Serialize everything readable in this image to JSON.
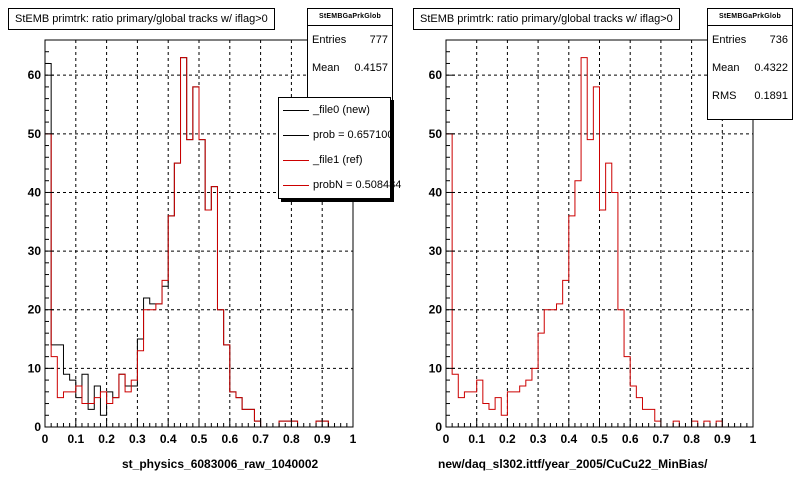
{
  "chart_data": [
    {
      "type": "histogram",
      "title": "StEMB primtrk: ratio primary/global tracks w/ iflag>0",
      "xlabel": "st_physics_6083006_raw_1040002",
      "xlim": [
        0,
        1
      ],
      "ylim": [
        0,
        66
      ],
      "xticks": [
        "0",
        "0.1",
        "0.2",
        "0.3",
        "0.4",
        "0.5",
        "0.6",
        "0.7",
        "0.8",
        "0.9",
        "1"
      ],
      "yticks": [
        "0",
        "10",
        "20",
        "30",
        "40",
        "50",
        "60"
      ],
      "grid": true,
      "bin_edges_start": 0,
      "bin_width": 0.02,
      "series": [
        {
          "name": "_file0 (new)",
          "color": "#000000",
          "values": [
            62,
            14,
            14,
            9,
            8,
            5,
            9,
            3,
            7,
            2,
            6,
            5,
            9,
            7,
            7,
            15,
            22,
            21,
            21,
            24,
            36,
            45,
            63,
            49,
            58,
            49,
            37,
            41,
            20,
            14,
            6,
            5,
            3,
            3,
            1,
            0,
            0,
            0,
            1,
            1,
            1,
            0,
            0,
            0,
            1,
            1,
            0,
            0,
            0,
            0
          ]
        },
        {
          "name": "_file1 (ref)",
          "color": "#cc0000",
          "values": [
            50,
            12,
            5,
            6,
            6,
            7,
            4,
            4,
            5,
            6,
            4,
            5,
            9,
            6,
            8,
            13,
            20,
            20,
            21,
            25,
            36,
            45,
            63,
            49,
            58,
            49,
            37,
            41,
            20,
            14,
            6,
            5,
            3,
            3,
            1,
            0,
            0,
            0,
            1,
            1,
            1,
            0,
            0,
            0,
            1,
            1,
            0,
            0,
            0,
            0
          ]
        }
      ],
      "stats": {
        "name": "StEMBGaPrkGlob",
        "entries": "777",
        "mean": "0.4157"
      },
      "legend": [
        {
          "label": "_file0 (new)",
          "color": "#000000"
        },
        {
          "label": "prob = 0.657100",
          "color": "#000000"
        },
        {
          "label": "_file1 (ref)",
          "color": "#cc0000"
        },
        {
          "label": "probN = 0.508484",
          "color": "#cc0000"
        }
      ]
    },
    {
      "type": "histogram",
      "title": "StEMB primtrk: ratio primary/global tracks w/ iflag>0",
      "xlabel": "new/daq_sl302.ittf/year_2005/CuCu22_MinBias/",
      "xlim": [
        0,
        1
      ],
      "ylim": [
        0,
        66
      ],
      "xticks": [
        "0",
        "0.1",
        "0.2",
        "0.3",
        "0.4",
        "0.5",
        "0.6",
        "0.7",
        "0.8",
        "0.9",
        "1"
      ],
      "yticks": [
        "0",
        "10",
        "20",
        "30",
        "40",
        "50",
        "60"
      ],
      "grid": true,
      "bin_edges_start": 0,
      "bin_width": 0.02,
      "series": [
        {
          "name": "",
          "color": "#cc0000",
          "values": [
            50,
            9,
            5,
            6,
            6,
            8,
            4,
            3,
            5,
            2,
            6,
            6,
            7,
            8,
            10,
            16,
            20,
            20,
            21,
            25,
            36,
            42,
            63,
            49,
            58,
            37,
            45,
            40,
            20,
            12,
            7,
            5,
            3,
            3,
            1,
            0,
            0,
            1,
            0,
            0,
            1,
            0,
            1,
            0,
            1,
            0,
            0,
            0,
            0,
            0
          ]
        }
      ],
      "stats": {
        "name": "StEMBGaPrkGlob",
        "entries": "736",
        "mean": "0.4322",
        "rms": "0.1891"
      }
    }
  ],
  "labels": {
    "entries": "Entries",
    "mean": "Mean",
    "rms": "RMS"
  }
}
